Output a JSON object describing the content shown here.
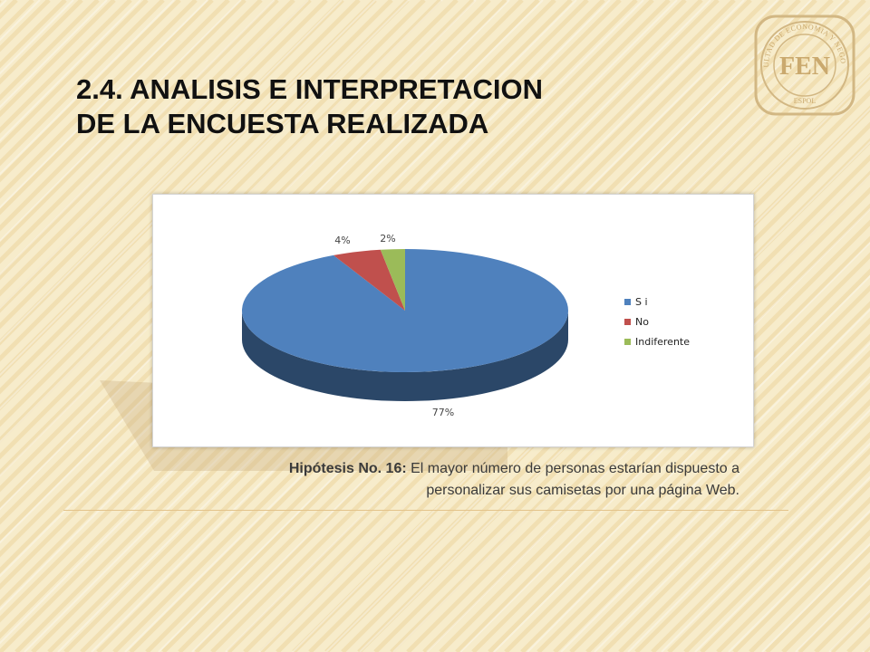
{
  "slide": {
    "title_line1": "2.4. ANALISIS E INTERPRETACION",
    "title_line2": "DE LA ENCUESTA REALIZADA",
    "caption_label": "Hipótesis No. 16:",
    "caption_line1": " El mayor número de personas estarían dispuesto a",
    "caption_line2": "personalizar sus camisetas por una página Web.",
    "logo_text": "FEN",
    "logo_ring_text": "FACULTAD DE ECONOMIA Y NEGOCIOS",
    "logo_bottom_text": "ESPOL"
  },
  "colors": {
    "background": "#f7eccb",
    "stripe": "#edd69e",
    "accent_line": "#e3c38a"
  },
  "chart_data": {
    "type": "pie",
    "style": "3d",
    "title": "",
    "categories": [
      "S i",
      "No",
      "Indiferente"
    ],
    "values": [
      77,
      4,
      2
    ],
    "data_labels": [
      "77%",
      "4%",
      "2%"
    ],
    "colors": [
      "#4f81bd",
      "#c0504d",
      "#9bbb59"
    ],
    "legend_position": "right"
  }
}
